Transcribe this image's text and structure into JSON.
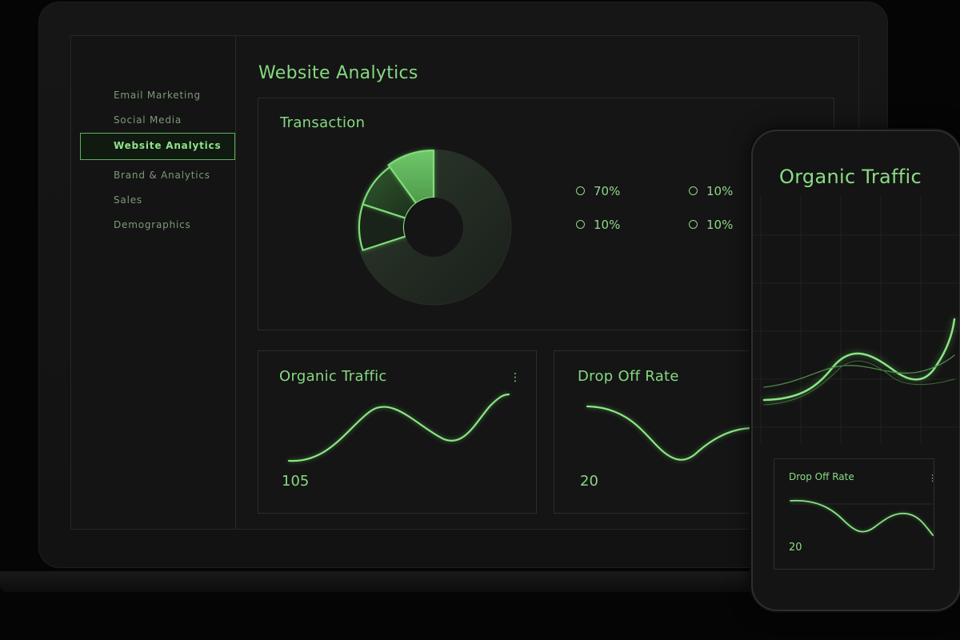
{
  "sidebar": {
    "items": [
      {
        "label": "Email Marketing"
      },
      {
        "label": "Social Media"
      },
      {
        "label": "Website Analytics"
      },
      {
        "label": "Brand & Analytics"
      },
      {
        "label": "Sales"
      },
      {
        "label": "Demographics"
      }
    ],
    "active": "Website Analytics"
  },
  "page": {
    "title": "Website Analytics"
  },
  "transaction": {
    "title": "Transaction",
    "legend": [
      {
        "label": "70%"
      },
      {
        "label": "10%"
      },
      {
        "label": "10%"
      },
      {
        "label": "10%"
      }
    ]
  },
  "organic_traffic": {
    "title": "Organic Traffic",
    "value": "105",
    "menu_icon": "kebab-icon"
  },
  "drop_off": {
    "title": "Drop Off Rate",
    "value": "20"
  },
  "phone": {
    "title": "Organic Traffic",
    "drop_off": {
      "title": "Drop Off Rate",
      "value": "20",
      "menu_icon": "kebab-icon"
    }
  },
  "colors": {
    "accent": "#7fd97a",
    "background": "#050505",
    "panel": "#151515",
    "border": "#2c2c2c"
  },
  "chart_data": [
    {
      "type": "pie",
      "title": "Transaction",
      "labels": [
        "70%",
        "10%",
        "10%",
        "10%"
      ],
      "values": [
        70,
        10,
        10,
        10
      ]
    }
  ]
}
